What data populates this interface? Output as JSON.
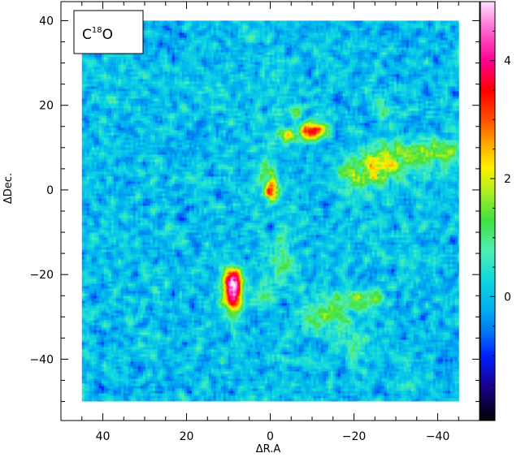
{
  "chart_data": {
    "type": "heatmap",
    "title_label": {
      "base": "C",
      "sup": "18",
      "tail": "O"
    },
    "xlabel": "ΔR.A",
    "ylabel": "ΔDec.",
    "xlim": [
      50,
      -50
    ],
    "ylim": [
      -54.5,
      44.5
    ],
    "data_extent": {
      "x": [
        45,
        -45
      ],
      "y": [
        -50,
        40
      ]
    },
    "x_ticks": [
      40,
      20,
      0,
      -20,
      -40
    ],
    "x_tick_labels": [
      "40",
      "20",
      "0",
      "−20",
      "−40"
    ],
    "y_ticks": [
      40,
      20,
      0,
      -20,
      -40
    ],
    "y_tick_labels": [
      "40",
      "20",
      "0",
      "−20",
      "−40"
    ],
    "colorbar": {
      "range": [
        -2.1,
        5.0
      ],
      "ticks": [
        4,
        2,
        0
      ],
      "tick_labels": [
        "4",
        "2",
        "0"
      ],
      "stops": [
        {
          "value": -2.1,
          "color": "#000000"
        },
        {
          "value": -1.5,
          "color": "#1a0090"
        },
        {
          "value": -1.0,
          "color": "#0020ff"
        },
        {
          "value": -0.6,
          "color": "#0078f0"
        },
        {
          "value": -0.2,
          "color": "#00aef0"
        },
        {
          "value": 0.3,
          "color": "#10d8e0"
        },
        {
          "value": 0.8,
          "color": "#50f0b0"
        },
        {
          "value": 1.3,
          "color": "#40e040"
        },
        {
          "value": 1.8,
          "color": "#b0f020"
        },
        {
          "value": 2.2,
          "color": "#fff000"
        },
        {
          "value": 2.6,
          "color": "#ffa800"
        },
        {
          "value": 3.0,
          "color": "#ff5000"
        },
        {
          "value": 3.5,
          "color": "#ff0000"
        },
        {
          "value": 4.0,
          "color": "#ff0090"
        },
        {
          "value": 4.5,
          "color": "#ff60d0"
        },
        {
          "value": 5.0,
          "color": "#ffe0ff"
        }
      ]
    },
    "background_level": 0.0,
    "features": [
      {
        "x": 9,
        "y": -24,
        "sx": 1.6,
        "sy": 3.2,
        "amp": 4.6
      },
      {
        "x": 9.5,
        "y": -21,
        "sx": 1.5,
        "sy": 1.5,
        "amp": 2.2
      },
      {
        "x": 0,
        "y": 0,
        "sx": 1.2,
        "sy": 1.8,
        "amp": 3.8
      },
      {
        "x": -10,
        "y": 14,
        "sx": 2.2,
        "sy": 1.5,
        "amp": 3.6
      },
      {
        "x": -4,
        "y": 13,
        "sx": 1.5,
        "sy": 1.2,
        "amp": 2.0
      },
      {
        "x": -6,
        "y": 19,
        "sx": 1.2,
        "sy": 1.2,
        "amp": 1.6
      },
      {
        "x": -26,
        "y": 5,
        "sx": 3.5,
        "sy": 2.5,
        "amp": 1.6
      },
      {
        "x": -30,
        "y": 8,
        "sx": 6,
        "sy": 2.5,
        "amp": 1.2
      },
      {
        "x": -40,
        "y": 9,
        "sx": 4,
        "sy": 2,
        "amp": 1.2
      },
      {
        "x": -20,
        "y": 3,
        "sx": 3,
        "sy": 3,
        "amp": 1.0
      },
      {
        "x": -27,
        "y": 19,
        "sx": 1.5,
        "sy": 1.5,
        "amp": 1.0
      },
      {
        "x": 1,
        "y": 5,
        "sx": 1.5,
        "sy": 1.5,
        "amp": 1.2
      },
      {
        "x": -2,
        "y": -12,
        "sx": 1.2,
        "sy": 1.5,
        "amp": 1.0
      },
      {
        "x": -3,
        "y": -18,
        "sx": 2,
        "sy": 2.5,
        "amp": 1.1
      },
      {
        "x": 1,
        "y": -25,
        "sx": 2,
        "sy": 2,
        "amp": 0.9
      },
      {
        "x": -12,
        "y": -30,
        "sx": 4,
        "sy": 3,
        "amp": 1.1
      },
      {
        "x": -17,
        "y": -26,
        "sx": 3,
        "sy": 2,
        "amp": 0.9
      },
      {
        "x": -20,
        "y": -36,
        "sx": 3,
        "sy": 3,
        "amp": 0.7
      },
      {
        "x": -24,
        "y": -26,
        "sx": 2.5,
        "sy": 2,
        "amp": 1.2
      }
    ]
  }
}
